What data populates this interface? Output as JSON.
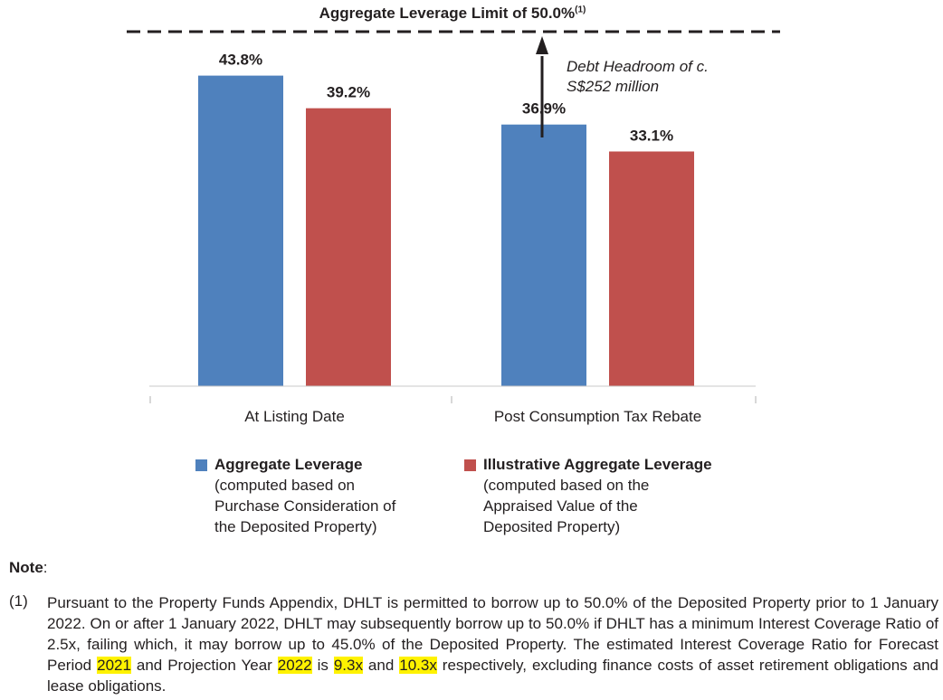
{
  "chart_data": {
    "type": "bar",
    "title": "Aggregate Leverage Limit of 50.0%",
    "title_footnote": "(1)",
    "categories": [
      "At Listing Date",
      "Post Consumption Tax Rebate"
    ],
    "series": [
      {
        "name": "Aggregate Leverage",
        "description": "(computed based on Purchase Consideration of the Deposited Property)",
        "color": "#4f81bd",
        "values": [
          43.8,
          36.9
        ],
        "labels": [
          "43.8%",
          "36.9%"
        ]
      },
      {
        "name": "Illustrative Aggregate Leverage",
        "description": "(computed based on the Appraised Value of the Deposited Property)",
        "color": "#c0504d",
        "values": [
          39.2,
          33.1
        ],
        "labels": [
          "39.2%",
          "33.1%"
        ]
      }
    ],
    "reference_line": {
      "value": 50.0,
      "style": "dashed",
      "label": "Aggregate Leverage Limit of 50.0%"
    },
    "annotation": {
      "text_line1": "Debt Headroom of c.",
      "text_line2": "S$252 million",
      "from_value": 36.9,
      "to_value": 50.0,
      "category": "Post Consumption Tax Rebate"
    },
    "ylim": [
      0,
      50
    ],
    "xlabel": "",
    "ylabel": "",
    "grid": false
  },
  "legend": {
    "items": [
      {
        "title": "Aggregate Leverage",
        "lines": [
          "(computed based on",
          "Purchase Consideration of",
          "the Deposited Property)"
        ],
        "color": "#4f81bd"
      },
      {
        "title": "Illustrative Aggregate Leverage",
        "lines": [
          "(computed based on the",
          "Appraised Value of the",
          "Deposited Property)"
        ],
        "color": "#c0504d"
      }
    ]
  },
  "note": {
    "heading": "Note",
    "number": "(1)",
    "text_1": "Pursuant to the Property Funds Appendix, DHLT is permitted to borrow up to 50.0% of the Deposited Property prior to 1 January 2022. On or after 1 January 2022, DHLT may subsequently borrow up to 50.0% if DHLT has a minimum Interest Coverage Ratio of 2.5x, failing which, it may borrow up to 45.0% of the Deposited Property. The estimated Interest Coverage Ratio for Forecast Period ",
    "hl_1": "2021",
    "text_2": " and Projection Year ",
    "hl_2": "2022",
    "text_3": " is ",
    "hl_3": "9.3x",
    "text_4": " and ",
    "hl_4": "10.3x",
    "text_5": " respectively, excluding finance costs of asset retirement obligations and lease obligations."
  }
}
